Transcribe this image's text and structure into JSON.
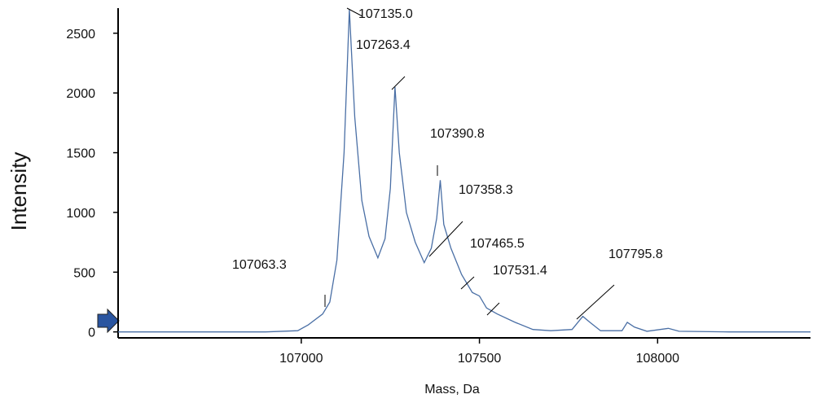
{
  "chart_data": {
    "type": "line",
    "x_label": "Mass, Da",
    "y_label": "Intensity",
    "x": [
      106486,
      106900,
      106990,
      107020,
      107060,
      107080,
      107100,
      107120,
      107135,
      107150,
      107170,
      107190,
      107215,
      107235,
      107250,
      107263,
      107275,
      107295,
      107320,
      107345,
      107365,
      107380,
      107390,
      107400,
      107420,
      107450,
      107480,
      107500,
      107520,
      107550,
      107600,
      107650,
      107700,
      107760,
      107790,
      107810,
      107840,
      107900,
      107915,
      107935,
      107970,
      108030,
      108060,
      108200,
      108429
    ],
    "series": [
      {
        "name": "Intensity",
        "color": "#4a6fa5",
        "values": [
          0,
          0,
          10,
          60,
          150,
          250,
          600,
          1500,
          2700,
          1800,
          1100,
          800,
          620,
          780,
          1200,
          2050,
          1500,
          1000,
          750,
          580,
          700,
          950,
          1270,
          900,
          700,
          480,
          330,
          300,
          200,
          150,
          80,
          20,
          10,
          20,
          130,
          80,
          10,
          10,
          80,
          40,
          5,
          30,
          5,
          0,
          0
        ]
      }
    ],
    "xlim": [
      106486,
      108429
    ],
    "ylim": [
      -50,
      2710
    ],
    "xticks": [
      107000,
      107500,
      108000
    ],
    "yticks": [
      0,
      500,
      1000,
      1500,
      2000,
      2500
    ],
    "annotations": [
      "107135.0",
      "107263.4",
      "107390.8",
      "107358.3",
      "107465.5",
      "107531.4",
      "107795.8",
      "107063.3"
    ]
  }
}
